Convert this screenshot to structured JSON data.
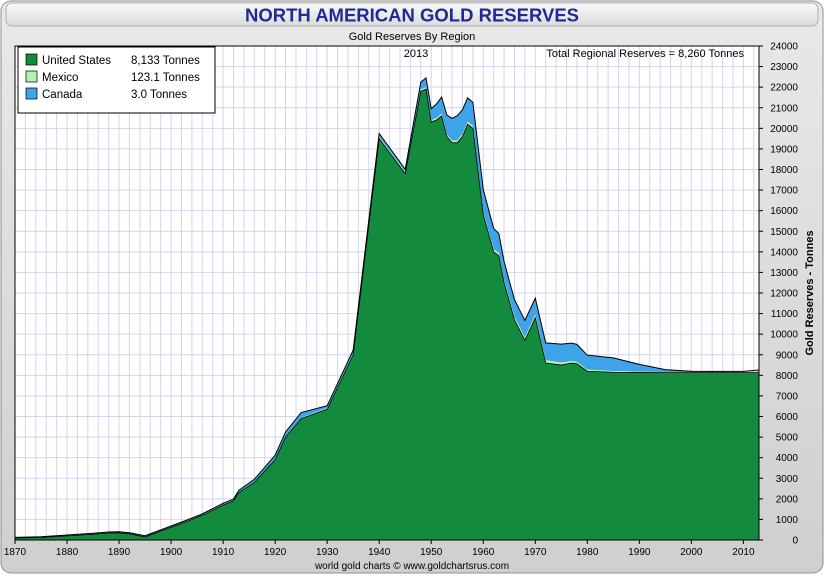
{
  "chart_data": {
    "type": "area",
    "title": "NORTH AMERICAN GOLD RESERVES",
    "subtitle": "Gold Reserves By Region",
    "year_label": "2013",
    "total_label": "Total Regional Reserves = 8,260 Tonnes",
    "ylabel": "Gold Reserves - Tonnes",
    "xlabel": "",
    "footer": "world gold charts © www.goldchartsrus.com",
    "xlim": [
      1870,
      2013
    ],
    "ylim": [
      0,
      24000
    ],
    "x_ticks": [
      1870,
      1880,
      1890,
      1900,
      1910,
      1920,
      1930,
      1940,
      1950,
      1960,
      1970,
      1980,
      1990,
      2000,
      2010
    ],
    "y_ticks": [
      0,
      1000,
      2000,
      3000,
      4000,
      5000,
      6000,
      7000,
      8000,
      9000,
      10000,
      11000,
      12000,
      13000,
      14000,
      15000,
      16000,
      17000,
      18000,
      19000,
      20000,
      21000,
      22000,
      23000,
      24000
    ],
    "grid": true,
    "legend_position": "top-left",
    "legend": [
      {
        "name": "United States",
        "value": "8,133 Tonnes",
        "color": "#138a3e"
      },
      {
        "name": "Mexico",
        "value": "123.1 Tonnes",
        "color": "#b3f0b3"
      },
      {
        "name": "Canada",
        "value": "3.0 Tonnes",
        "color": "#3ea3e8"
      }
    ],
    "series": [
      {
        "name": "United States",
        "color": "#138a3e",
        "x": [
          1870,
          1875,
          1880,
          1885,
          1888,
          1890,
          1892,
          1895,
          1900,
          1903,
          1906,
          1910,
          1912,
          1913,
          1916,
          1920,
          1922,
          1925,
          1930,
          1935,
          1940,
          1945,
          1948,
          1949,
          1950,
          1951,
          1952,
          1953,
          1954,
          1955,
          1956,
          1957,
          1958,
          1960,
          1962,
          1963,
          1964,
          1966,
          1968,
          1970,
          1972,
          1975,
          1976,
          1977,
          1978,
          1980,
          1985,
          1990,
          1995,
          2000,
          2005,
          2010,
          2013
        ],
        "values": [
          100,
          120,
          200,
          280,
          340,
          350,
          300,
          150,
          620,
          900,
          1200,
          1700,
          1900,
          2300,
          2800,
          3900,
          5000,
          5900,
          6350,
          9000,
          19500,
          17800,
          21800,
          21900,
          20300,
          20400,
          20600,
          19600,
          19300,
          19300,
          19600,
          20200,
          20000,
          15800,
          14000,
          13800,
          12500,
          10700,
          9700,
          10800,
          8600,
          8500,
          8550,
          8600,
          8560,
          8200,
          8150,
          8140,
          8130,
          8130,
          8130,
          8130,
          8133
        ]
      },
      {
        "name": "Mexico",
        "color": "#b3f0b3",
        "x": [
          1870,
          1920,
          1940,
          1950,
          1960,
          1970,
          1980,
          1990,
          2000,
          2010,
          2013
        ],
        "values": [
          20,
          30,
          80,
          100,
          130,
          150,
          80,
          40,
          20,
          60,
          123.1
        ]
      },
      {
        "name": "Canada",
        "color": "#3ea3e8",
        "x": [
          1870,
          1905,
          1912,
          1913,
          1918,
          1920,
          1925,
          1930,
          1935,
          1940,
          1945,
          1948,
          1950,
          1955,
          1960,
          1965,
          1970,
          1975,
          1978,
          1980,
          1985,
          1990,
          1995,
          2000,
          2005,
          2010,
          2013
        ],
        "values": [
          10,
          40,
          60,
          80,
          150,
          190,
          250,
          120,
          160,
          170,
          120,
          350,
          550,
          1200,
          1100,
          850,
          800,
          900,
          850,
          700,
          640,
          350,
          120,
          50,
          20,
          5,
          3.0
        ]
      }
    ]
  }
}
